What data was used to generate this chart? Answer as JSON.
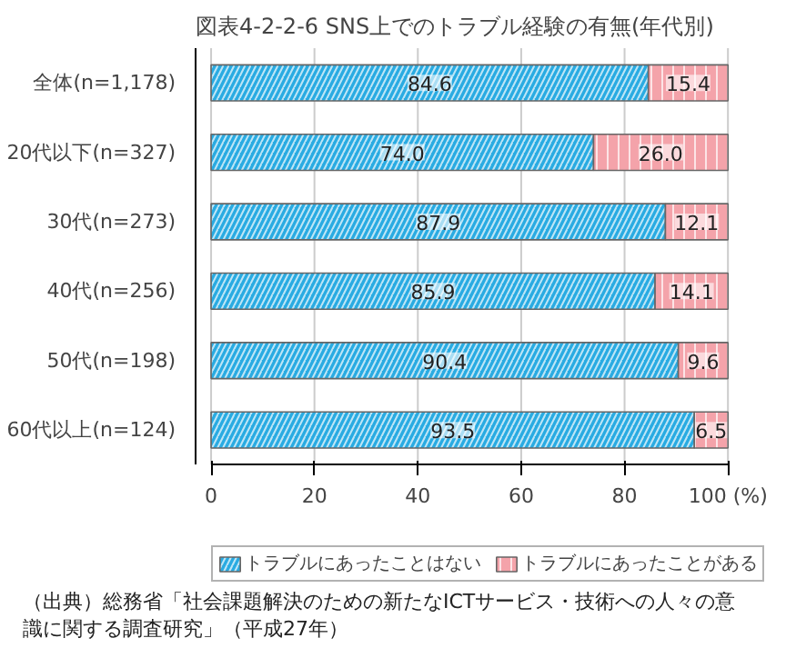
{
  "chart_data": {
    "type": "bar",
    "orientation": "horizontal",
    "stacked": true,
    "title": "図表4-2-2-6 SNS上でのトラブル経験の有無(年代別)",
    "categories": [
      "全体(n=1,178)",
      "20代以下(n=327)",
      "30代(n=273)",
      "40代(n=256)",
      "50代(n=198)",
      "60代以上(n=124)"
    ],
    "series": [
      {
        "name": "トラブルにあったことはない",
        "color": "#29abe2",
        "values": [
          84.6,
          74.0,
          87.9,
          85.9,
          90.4,
          93.5
        ]
      },
      {
        "name": "トラブルにあったことがある",
        "color": "#f4a3aa",
        "values": [
          15.4,
          26.0,
          12.1,
          14.1,
          9.6,
          6.5
        ]
      }
    ],
    "value_labels": [
      [
        "84.6",
        "74.0",
        "87.9",
        "85.9",
        "90.4",
        "93.5"
      ],
      [
        "15.4",
        "26.0",
        "12.1",
        "14.1",
        "9.6",
        "6.5"
      ]
    ],
    "xlim": [
      0,
      100
    ],
    "xticks": [
      0,
      20,
      40,
      60,
      80,
      {
        "value": 100,
        "label": "100 (%)"
      }
    ],
    "grid": "x",
    "legend": "bottom",
    "annotations": [
      "（出典）総務省「社会課題解決のための新たなICTサービス・技術への人々の意識に関する調査研究」（平成27年）"
    ]
  }
}
